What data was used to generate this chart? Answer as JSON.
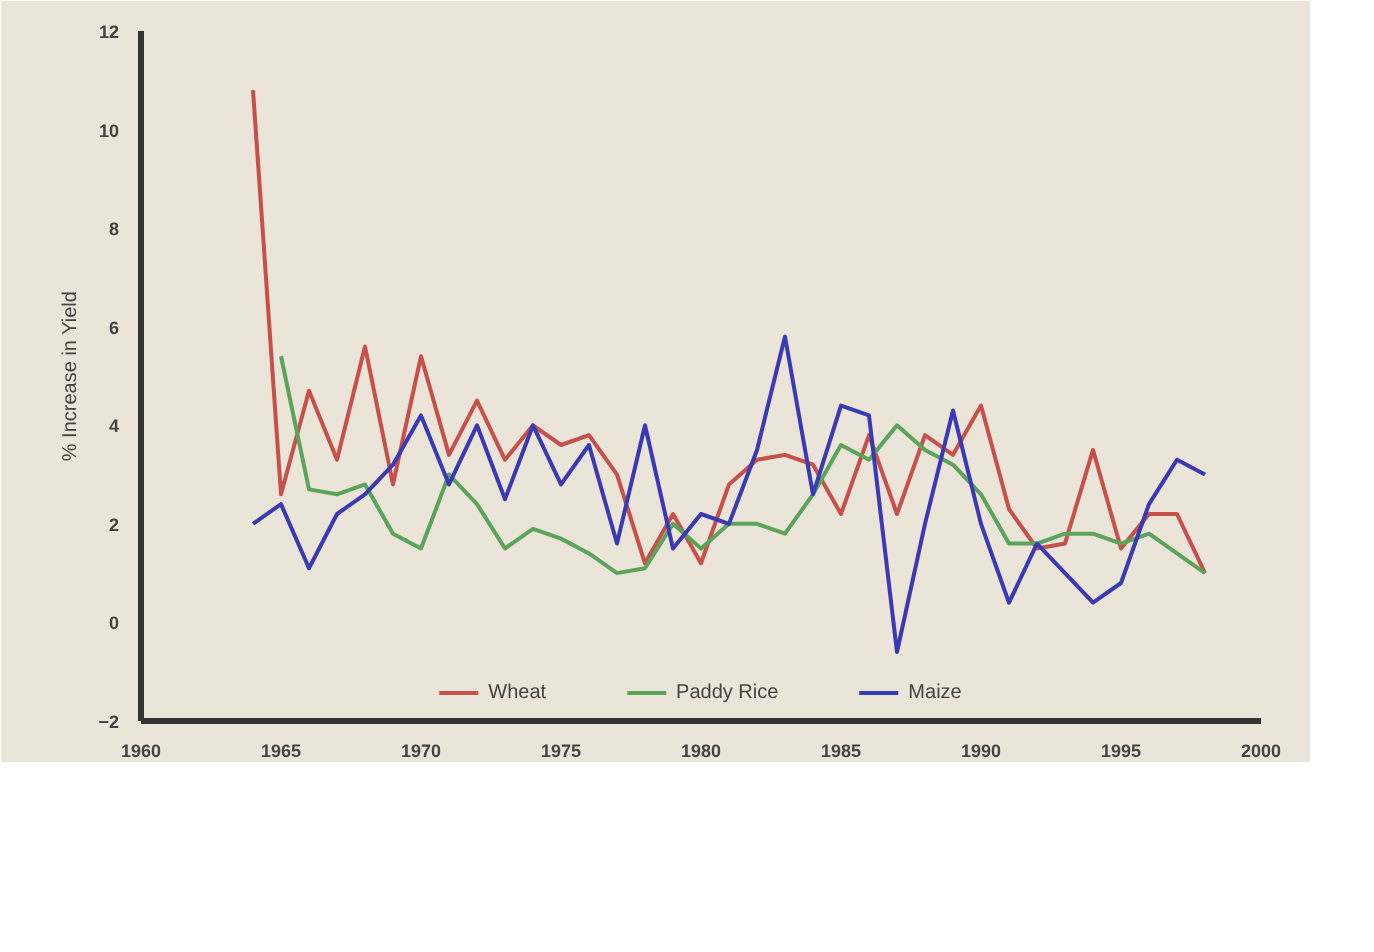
{
  "chart_data": {
    "type": "line",
    "ylabel": "% Increase in Yield",
    "xlim": [
      1960,
      2000
    ],
    "xticks": [
      1960,
      1965,
      1970,
      1975,
      1980,
      1985,
      1990,
      1995,
      2000
    ],
    "ylim": [
      -2,
      12
    ],
    "yticks": [
      -2,
      0,
      2,
      4,
      6,
      8,
      10,
      12
    ],
    "grid": false,
    "legend": "bottom",
    "series": [
      {
        "name": "Wheat",
        "color": "#c8504a",
        "x": [
          1964,
          1965,
          1966,
          1967,
          1968,
          1969,
          1970,
          1971,
          1972,
          1973,
          1974,
          1975,
          1976,
          1977,
          1978,
          1979,
          1980,
          1981,
          1982,
          1983,
          1984,
          1985,
          1986,
          1987,
          1988,
          1989,
          1990,
          1991,
          1992,
          1993,
          1994,
          1995,
          1996,
          1997,
          1998
        ],
        "values": [
          10.8,
          2.6,
          4.7,
          3.3,
          5.6,
          2.8,
          5.4,
          3.4,
          4.5,
          3.3,
          4.0,
          3.6,
          3.8,
          3.0,
          1.2,
          2.2,
          1.2,
          2.8,
          3.3,
          3.4,
          3.2,
          2.2,
          3.8,
          2.2,
          3.8,
          3.4,
          4.4,
          2.3,
          1.5,
          1.6,
          3.5,
          1.5,
          2.2,
          2.2,
          1.0
        ]
      },
      {
        "name": "Paddy Rice",
        "color": "#5aa55a",
        "x": [
          1965,
          1966,
          1967,
          1968,
          1969,
          1970,
          1971,
          1972,
          1973,
          1974,
          1975,
          1976,
          1977,
          1978,
          1979,
          1980,
          1981,
          1982,
          1983,
          1984,
          1985,
          1986,
          1987,
          1988,
          1989,
          1990,
          1991,
          1992,
          1993,
          1994,
          1995,
          1996,
          1997,
          1998
        ],
        "values": [
          5.4,
          2.7,
          2.6,
          2.8,
          1.8,
          1.5,
          3.0,
          2.4,
          1.5,
          1.9,
          1.7,
          1.4,
          1.0,
          1.1,
          2.0,
          1.5,
          2.0,
          2.0,
          1.8,
          2.6,
          3.6,
          3.3,
          4.0,
          3.5,
          3.2,
          2.6,
          1.6,
          1.6,
          1.8,
          1.8,
          1.6,
          1.8,
          1.4,
          1.0
        ]
      },
      {
        "name": "Maize",
        "color": "#3a3ab4",
        "x": [
          1964,
          1965,
          1966,
          1967,
          1968,
          1969,
          1970,
          1971,
          1972,
          1973,
          1974,
          1975,
          1976,
          1977,
          1978,
          1979,
          1980,
          1981,
          1982,
          1983,
          1984,
          1985,
          1986,
          1987,
          1988,
          1989,
          1990,
          1991,
          1992,
          1993,
          1994,
          1995,
          1996,
          1997,
          1998
        ],
        "values": [
          2.0,
          2.4,
          1.1,
          2.2,
          2.6,
          3.2,
          4.2,
          2.8,
          4.0,
          2.5,
          4.0,
          2.8,
          3.6,
          1.6,
          4.0,
          1.5,
          2.2,
          2.0,
          3.5,
          5.8,
          2.6,
          4.4,
          4.2,
          -0.6,
          2.0,
          4.3,
          2.0,
          0.4,
          1.6,
          1.0,
          0.4,
          0.8,
          2.4,
          3.3,
          3.0
        ]
      }
    ]
  }
}
